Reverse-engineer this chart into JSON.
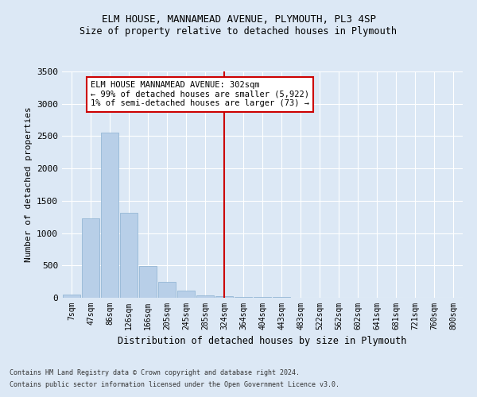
{
  "title1": "ELM HOUSE, MANNAMEAD AVENUE, PLYMOUTH, PL3 4SP",
  "title2": "Size of property relative to detached houses in Plymouth",
  "xlabel": "Distribution of detached houses by size in Plymouth",
  "ylabel": "Number of detached properties",
  "footnote1": "Contains HM Land Registry data © Crown copyright and database right 2024.",
  "footnote2": "Contains public sector information licensed under the Open Government Licence v3.0.",
  "bar_labels": [
    "7sqm",
    "47sqm",
    "86sqm",
    "126sqm",
    "166sqm",
    "205sqm",
    "245sqm",
    "285sqm",
    "324sqm",
    "364sqm",
    "404sqm",
    "443sqm",
    "483sqm",
    "522sqm",
    "562sqm",
    "602sqm",
    "641sqm",
    "681sqm",
    "721sqm",
    "760sqm",
    "800sqm"
  ],
  "bar_values": [
    50,
    1230,
    2550,
    1320,
    490,
    240,
    115,
    35,
    25,
    15,
    10,
    8,
    5,
    0,
    0,
    0,
    0,
    0,
    0,
    0,
    0
  ],
  "bar_color": "#b8cfe8",
  "bar_edge_color": "#8ab0d0",
  "property_line_x": 8.0,
  "annotation_text": "ELM HOUSE MANNAMEAD AVENUE: 302sqm\n← 99% of detached houses are smaller (5,922)\n1% of semi-detached houses are larger (73) →",
  "annotation_box_color": "#ffffff",
  "annotation_box_edgecolor": "#cc0000",
  "vline_color": "#cc0000",
  "bg_color": "#dce8f5",
  "plot_bg_color": "#dce8f5",
  "ylim": [
    0,
    3500
  ],
  "yticks": [
    0,
    500,
    1000,
    1500,
    2000,
    2500,
    3000,
    3500
  ]
}
